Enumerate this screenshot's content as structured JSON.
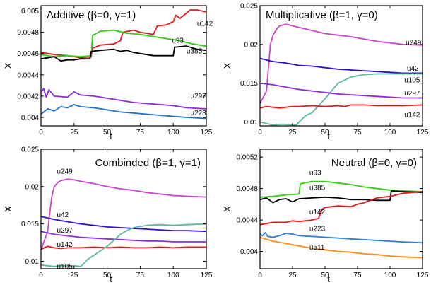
{
  "chart_data": [
    {
      "type": "line",
      "title": "Additive (β=0, γ=1)",
      "xlabel": "t",
      "ylabel": "X",
      "xlim": [
        0,
        125
      ],
      "ylim": [
        0.00392,
        0.00505
      ],
      "xticks": [
        "0",
        "25",
        "50",
        "75",
        "100",
        "125"
      ],
      "yticks": [
        "0.004",
        "0.0042",
        "0.0044",
        "0.0046",
        "0.0048",
        "0.005"
      ],
      "series": [
        {
          "name": "u142",
          "color": "#e8191c",
          "label_at": [
            118,
            0.00488
          ],
          "x": [
            0,
            10,
            20,
            30,
            38,
            39,
            45,
            55,
            60,
            62,
            70,
            75,
            85,
            88,
            95,
            100,
            102,
            105,
            110,
            113,
            118,
            125
          ],
          "y": [
            0.00461,
            0.00459,
            0.00458,
            0.00456,
            0.00457,
            0.00465,
            0.00468,
            0.00469,
            0.00472,
            0.0048,
            0.00482,
            0.0048,
            0.00478,
            0.00486,
            0.00487,
            0.0049,
            0.00496,
            0.00493,
            0.00498,
            0.00501,
            0.00501,
            0.00499
          ]
        },
        {
          "name": "u93",
          "color": "#33cc14",
          "label_at": [
            99,
            0.00472
          ],
          "x": [
            0,
            10,
            20,
            30,
            38,
            39,
            45,
            55,
            65,
            75,
            85,
            95,
            105,
            115,
            125
          ],
          "y": [
            0.00459,
            0.00457,
            0.00458,
            0.00457,
            0.00458,
            0.00477,
            0.00481,
            0.00482,
            0.00479,
            0.00478,
            0.00476,
            0.00474,
            0.00472,
            0.00469,
            0.00467
          ]
        },
        {
          "name": "u385",
          "color": "#000000",
          "label_at": [
            110,
            0.00462
          ],
          "x": [
            0,
            10,
            15,
            20,
            25,
            30,
            37,
            38,
            45,
            55,
            60,
            65,
            70,
            75,
            85,
            95,
            100,
            101,
            110,
            118,
            125
          ],
          "y": [
            0.00455,
            0.00457,
            0.00453,
            0.00454,
            0.00454,
            0.00455,
            0.00455,
            0.00462,
            0.00463,
            0.00464,
            0.00462,
            0.00463,
            0.00461,
            0.0046,
            0.00458,
            0.00458,
            0.00458,
            0.00466,
            0.00467,
            0.00464,
            0.00463
          ]
        },
        {
          "name": "u297",
          "color": "#8a2be2",
          "label_at": [
            113,
            0.0042
          ],
          "x": [
            0,
            2,
            4,
            6,
            10,
            20,
            25,
            30,
            40,
            50,
            60,
            70,
            80,
            90,
            100,
            110,
            125
          ],
          "y": [
            0.00424,
            0.00427,
            0.00419,
            0.00426,
            0.0042,
            0.00419,
            0.00424,
            0.00421,
            0.0042,
            0.00418,
            0.00416,
            0.00414,
            0.00413,
            0.00412,
            0.00411,
            0.00409,
            0.00408
          ]
        },
        {
          "name": "u223",
          "color": "#1f6fc8",
          "label_at": [
            113,
            0.00404
          ],
          "x": [
            0,
            5,
            10,
            15,
            20,
            25,
            30,
            40,
            50,
            60,
            70,
            80,
            90,
            100,
            110,
            125
          ],
          "y": [
            0.00403,
            0.00408,
            0.00406,
            0.0041,
            0.00409,
            0.00412,
            0.0041,
            0.00409,
            0.00407,
            0.00405,
            0.00404,
            0.00403,
            0.00402,
            0.00401,
            0.004,
            0.00399
          ]
        }
      ]
    },
    {
      "type": "line",
      "title": "Multiplicative (β=1, γ=0)",
      "xlabel": "t",
      "ylabel": "X",
      "xlim": [
        0,
        125
      ],
      "ylim": [
        0.0095,
        0.025
      ],
      "xticks": [
        "0",
        "25",
        "50",
        "75",
        "100",
        "125"
      ],
      "yticks": [
        "0.01",
        "0.015",
        "0.02",
        "0.025"
      ],
      "series": [
        {
          "name": "u249",
          "color": "#cc44cc",
          "label_at": [
            112,
            0.0202
          ],
          "x": [
            0,
            5,
            8,
            10,
            13,
            15,
            20,
            25,
            30,
            40,
            50,
            60,
            70,
            80,
            90,
            100,
            110,
            125
          ],
          "y": [
            0.0124,
            0.014,
            0.02,
            0.0212,
            0.022,
            0.0224,
            0.0226,
            0.0224,
            0.0222,
            0.0218,
            0.0214,
            0.0212,
            0.021,
            0.0207,
            0.0204,
            0.0202,
            0.02,
            0.0199
          ]
        },
        {
          "name": "u42",
          "color": "#2e0fd4",
          "label_at": [
            113,
            0.0169
          ],
          "x": [
            0,
            10,
            20,
            30,
            40,
            50,
            60,
            70,
            80,
            90,
            100,
            110,
            125
          ],
          "y": [
            0.0182,
            0.0178,
            0.0176,
            0.0173,
            0.0172,
            0.017,
            0.0168,
            0.0167,
            0.0166,
            0.0165,
            0.0164,
            0.0163,
            0.0163
          ]
        },
        {
          "name": "u105",
          "color": "#5fb7a0",
          "label_at": [
            111,
            0.0154
          ],
          "x": [
            0,
            5,
            10,
            15,
            20,
            25,
            28,
            30,
            35,
            40,
            50,
            55,
            60,
            70,
            80,
            90,
            100,
            110,
            125
          ],
          "y": [
            0.01,
            0.0098,
            0.0096,
            0.0097,
            0.0097,
            0.0096,
            0.0096,
            0.01,
            0.0108,
            0.0112,
            0.013,
            0.014,
            0.015,
            0.0158,
            0.0161,
            0.0162,
            0.0162,
            0.0162,
            0.0162
          ]
        },
        {
          "name": "u297",
          "color": "#8a2be2",
          "label_at": [
            111,
            0.0137
          ],
          "x": [
            0,
            10,
            20,
            30,
            40,
            50,
            60,
            70,
            80,
            90,
            100,
            110,
            125
          ],
          "y": [
            0.015,
            0.0148,
            0.0145,
            0.0142,
            0.014,
            0.0138,
            0.0136,
            0.0135,
            0.0134,
            0.0133,
            0.0132,
            0.0131,
            0.0131
          ]
        },
        {
          "name": "u142",
          "color": "#e8191c",
          "label_at": [
            111,
            0.0109
          ],
          "x": [
            0,
            5,
            10,
            15,
            20,
            25,
            30,
            40,
            50,
            60,
            65,
            70,
            80,
            90,
            100,
            110,
            125
          ],
          "y": [
            0.0118,
            0.012,
            0.0119,
            0.0118,
            0.0119,
            0.012,
            0.012,
            0.0121,
            0.012,
            0.0121,
            0.012,
            0.0122,
            0.0122,
            0.0121,
            0.0121,
            0.0121,
            0.0122
          ]
        }
      ]
    },
    {
      "type": "line",
      "title": "Combinded (β=1, γ=1)",
      "xlabel": "t",
      "ylabel": "X",
      "xlim": [
        0,
        125
      ],
      "ylim": [
        0.009,
        0.025
      ],
      "xticks": [
        "0",
        "25",
        "50",
        "75",
        "100",
        "125"
      ],
      "yticks": [
        "0.01",
        "0.015",
        "0.02",
        "0.025"
      ],
      "series": [
        {
          "name": "u249",
          "color": "#cc44cc",
          "label_at": [
            12,
            0.022
          ],
          "x": [
            0,
            5,
            8,
            10,
            13,
            15,
            20,
            25,
            30,
            40,
            50,
            60,
            70,
            80,
            90,
            100,
            110,
            125
          ],
          "y": [
            0.0115,
            0.014,
            0.0185,
            0.02,
            0.0206,
            0.0208,
            0.021,
            0.0209,
            0.0207,
            0.0204,
            0.02,
            0.0197,
            0.0195,
            0.0192,
            0.019,
            0.0188,
            0.0187,
            0.0186
          ]
        },
        {
          "name": "u42",
          "color": "#2e0fd4",
          "label_at": [
            12,
            0.0162
          ],
          "x": [
            0,
            10,
            20,
            30,
            40,
            50,
            60,
            70,
            80,
            90,
            100,
            110,
            125
          ],
          "y": [
            0.016,
            0.0156,
            0.0153,
            0.015,
            0.0148,
            0.0146,
            0.0145,
            0.0144,
            0.0143,
            0.0142,
            0.0141,
            0.0141,
            0.014
          ]
        },
        {
          "name": "u297",
          "color": "#8a2be2",
          "label_at": [
            12,
            0.0141
          ],
          "x": [
            0,
            10,
            20,
            30,
            40,
            50,
            60,
            70,
            80,
            90,
            100,
            110,
            125
          ],
          "y": [
            0.014,
            0.0136,
            0.0134,
            0.0132,
            0.0131,
            0.013,
            0.0129,
            0.0128,
            0.0127,
            0.0127,
            0.0126,
            0.0126,
            0.0126
          ]
        },
        {
          "name": "u142",
          "color": "#e8191c",
          "label_at": [
            12,
            0.0122
          ],
          "x": [
            0,
            5,
            10,
            15,
            20,
            25,
            30,
            40,
            50,
            60,
            70,
            80,
            90,
            100,
            110,
            125
          ],
          "y": [
            0.0116,
            0.012,
            0.0118,
            0.0117,
            0.0118,
            0.0118,
            0.0118,
            0.0119,
            0.0118,
            0.0119,
            0.0118,
            0.0118,
            0.0119,
            0.0118,
            0.0119,
            0.0119
          ]
        },
        {
          "name": "u105",
          "color": "#5fb7a0",
          "label_at": [
            12,
            0.0093
          ],
          "x": [
            0,
            5,
            10,
            15,
            20,
            25,
            30,
            33,
            35,
            40,
            45,
            50,
            55,
            60,
            65,
            70,
            80,
            90,
            100,
            110,
            125
          ],
          "y": [
            0.0095,
            0.0094,
            0.0093,
            0.0094,
            0.0094,
            0.0094,
            0.0093,
            0.0098,
            0.0102,
            0.0108,
            0.0114,
            0.012,
            0.0128,
            0.0136,
            0.0141,
            0.0145,
            0.0148,
            0.0149,
            0.0148,
            0.0149,
            0.015
          ]
        }
      ]
    },
    {
      "type": "line",
      "title": "Neutral (β=0, γ=0)",
      "xlabel": "t",
      "ylabel": "X",
      "xlim": [
        0,
        125
      ],
      "ylim": [
        0.00378,
        0.0053
      ],
      "xticks": [
        "0",
        "25",
        "50",
        "75",
        "100",
        "125"
      ],
      "yticks": [
        "0.004",
        "0.0044",
        "0.0048",
        "0.0052"
      ],
      "series": [
        {
          "name": "u93",
          "color": "#33cc14",
          "label_at": [
            38,
            0.005
          ],
          "x": [
            0,
            10,
            20,
            30,
            31,
            40,
            50,
            60,
            70,
            80,
            90,
            100,
            110,
            125
          ],
          "y": [
            0.00469,
            0.0047,
            0.00472,
            0.00473,
            0.00486,
            0.00489,
            0.00489,
            0.00487,
            0.00485,
            0.00482,
            0.0048,
            0.00478,
            0.00477,
            0.00476
          ]
        },
        {
          "name": "u385",
          "color": "#000000",
          "label_at": [
            38,
            0.00481
          ],
          "x": [
            0,
            5,
            10,
            15,
            20,
            25,
            30,
            40,
            50,
            60,
            70,
            80,
            90,
            100,
            101,
            110,
            125
          ],
          "y": [
            0.00466,
            0.00468,
            0.00462,
            0.00466,
            0.00467,
            0.00463,
            0.00467,
            0.00468,
            0.00469,
            0.00468,
            0.00466,
            0.00466,
            0.00465,
            0.00465,
            0.00477,
            0.00476,
            0.00475
          ]
        },
        {
          "name": "u142",
          "color": "#e8191c",
          "label_at": [
            38,
            0.0045
          ],
          "x": [
            0,
            10,
            20,
            25,
            30,
            40,
            45,
            48,
            50,
            60,
            70,
            75,
            80,
            90,
            100,
            110,
            125
          ],
          "y": [
            0.00434,
            0.00437,
            0.00437,
            0.00439,
            0.00438,
            0.0044,
            0.00442,
            0.00454,
            0.00456,
            0.00458,
            0.00457,
            0.0046,
            0.00462,
            0.00468,
            0.0047,
            0.00474,
            0.00476
          ]
        },
        {
          "name": "u223",
          "color": "#2a7fd4",
          "label_at": [
            38,
            0.00429
          ],
          "x": [
            0,
            2,
            4,
            6,
            10,
            15,
            20,
            25,
            30,
            40,
            50,
            60,
            70,
            80,
            90,
            100,
            110,
            125
          ],
          "y": [
            0.00422,
            0.0042,
            0.00424,
            0.00419,
            0.00418,
            0.0042,
            0.00423,
            0.00422,
            0.0042,
            0.00419,
            0.00418,
            0.00417,
            0.00416,
            0.00415,
            0.00414,
            0.00413,
            0.00412,
            0.00411
          ]
        },
        {
          "name": "u511",
          "color": "#ff8c1a",
          "label_at": [
            38,
            0.00405
          ],
          "x": [
            0,
            10,
            20,
            30,
            40,
            50,
            60,
            70,
            80,
            90,
            100,
            110,
            125
          ],
          "y": [
            0.00418,
            0.00413,
            0.0041,
            0.00407,
            0.00404,
            0.00402,
            0.004,
            0.00399,
            0.00397,
            0.00396,
            0.00394,
            0.00393,
            0.00392
          ]
        }
      ]
    }
  ]
}
